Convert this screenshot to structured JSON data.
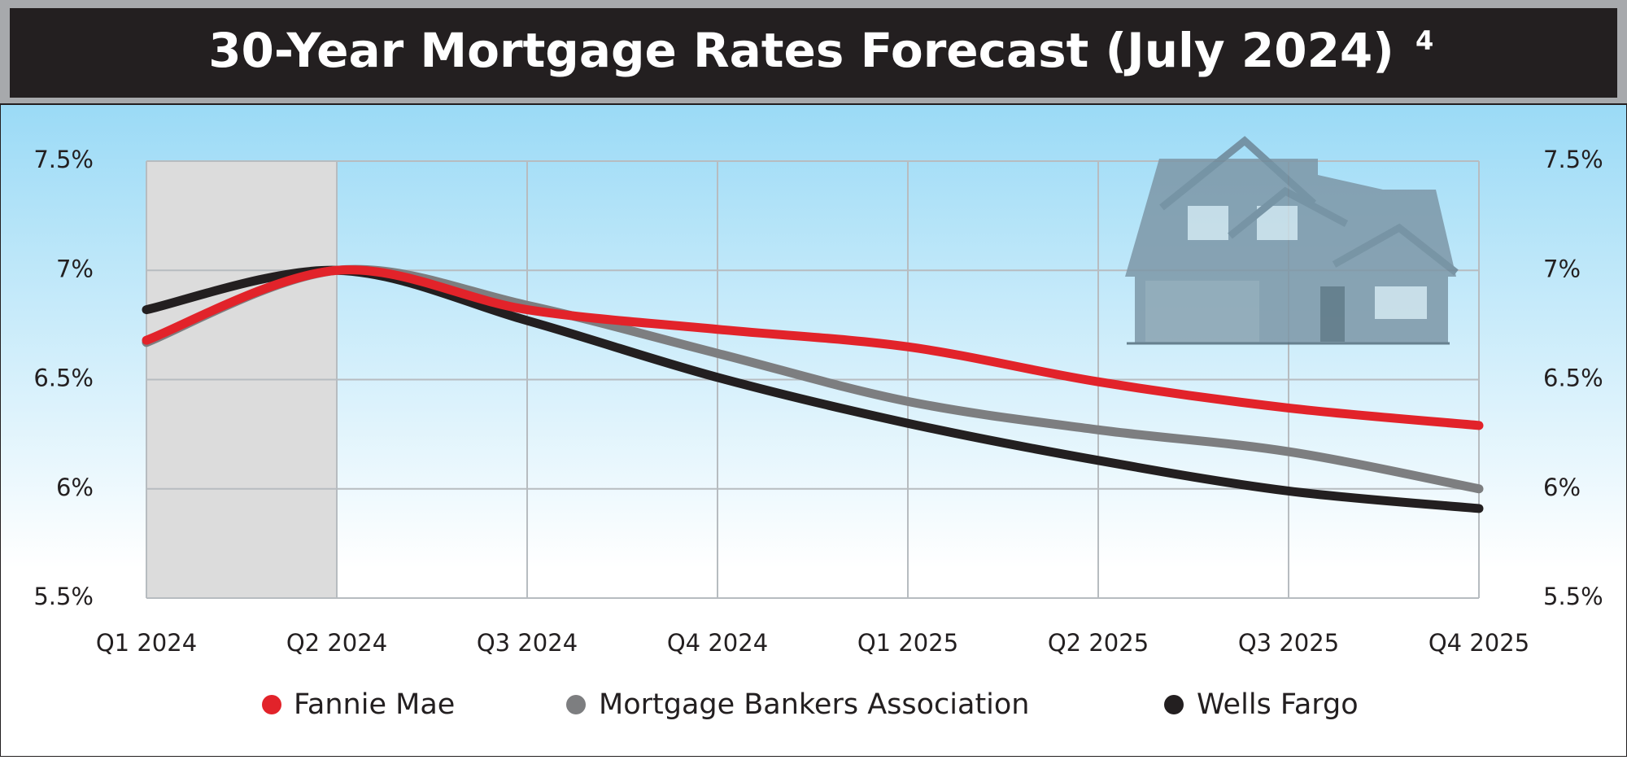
{
  "chart_data": {
    "type": "line",
    "title": "30-Year Mortgage Rates Forecast (July 2024)",
    "title_superscript": "4",
    "categories": [
      "Q1 2024",
      "Q2 2024",
      "Q3 2024",
      "Q4 2024",
      "Q1 2025",
      "Q2 2025",
      "Q3 2025",
      "Q4 2025"
    ],
    "series": [
      {
        "name": "Fannie Mae",
        "color": "#e2232a",
        "values": [
          6.68,
          7.0,
          6.82,
          6.73,
          6.65,
          6.49,
          6.37,
          6.29
        ]
      },
      {
        "name": "Mortgage Bankers Association",
        "color": "#7d7e80",
        "values": [
          6.67,
          7.0,
          6.84,
          6.62,
          6.4,
          6.27,
          6.17,
          6.0
        ]
      },
      {
        "name": "Wells Fargo",
        "color": "#231f20",
        "values": [
          6.82,
          7.0,
          6.77,
          6.51,
          6.3,
          6.13,
          5.99,
          5.91
        ]
      }
    ],
    "ylim": [
      5.5,
      7.5
    ],
    "yticks": [
      {
        "value": 5.5,
        "label": "5.5%"
      },
      {
        "value": 6,
        "label": "6%"
      },
      {
        "value": 6.5,
        "label": "6.5%"
      },
      {
        "value": 7,
        "label": "7%"
      },
      {
        "value": 7.5,
        "label": "7.5%"
      }
    ],
    "grid": true
  }
}
